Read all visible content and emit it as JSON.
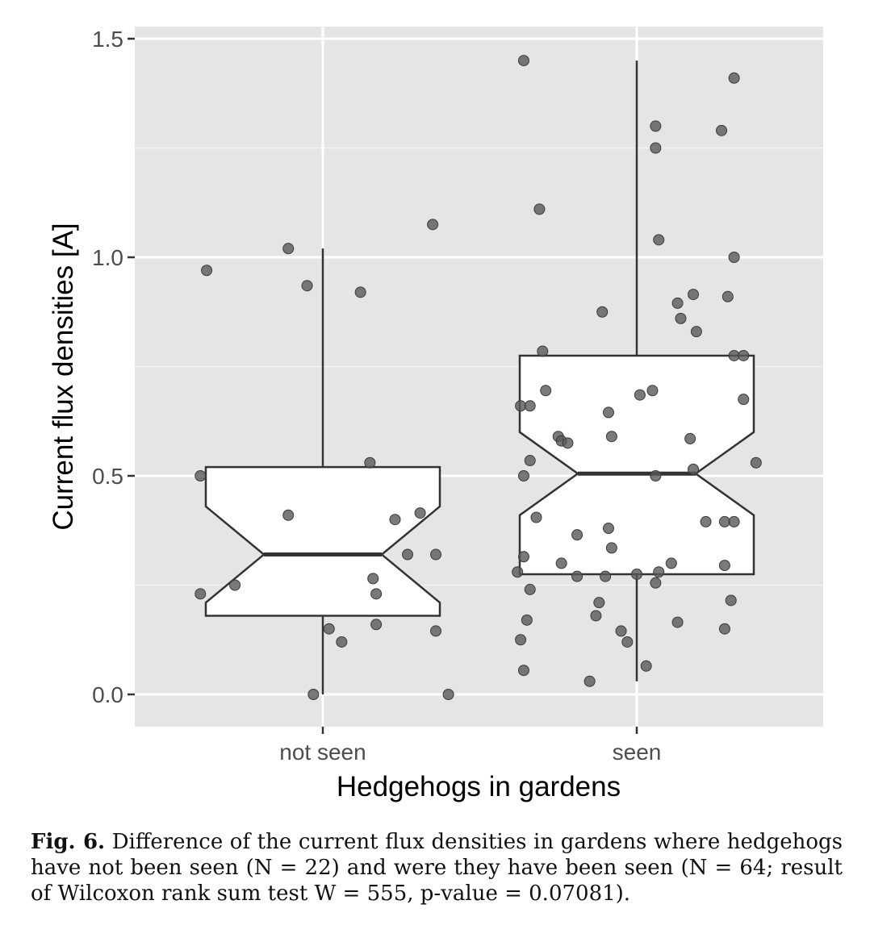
{
  "chart_data": {
    "type": "boxplot",
    "variant": "notched, with jittered points",
    "xlabel": "Hedgehogs in gardens",
    "ylabel": "Current flux densities [A]",
    "categories": [
      "not seen",
      "seen"
    ],
    "ylim": [
      -0.07,
      1.53
    ],
    "yticks": [
      {
        "value": 0.0,
        "label": "0.0"
      },
      {
        "value": 0.5,
        "label": "0.5"
      },
      {
        "value": 1.0,
        "label": "1.0"
      },
      {
        "value": 1.5,
        "label": "1.5"
      }
    ],
    "grid": true,
    "panel_background": "#e5e5e5",
    "point_color": "#595959",
    "boxes": [
      {
        "category": "not seen",
        "whisker_low": 0.0,
        "q1": 0.18,
        "median": 0.32,
        "q3": 0.52,
        "whisker_high": 1.02,
        "notch_low": 0.21,
        "notch_high": 0.43
      },
      {
        "category": "seen",
        "whisker_low": 0.03,
        "q1": 0.275,
        "median": 0.505,
        "q3": 0.775,
        "whisker_high": 1.45,
        "notch_low": 0.41,
        "notch_high": 0.6
      }
    ],
    "points": [
      {
        "category": "not seen",
        "values": [
          0.97,
          1.02,
          0.935,
          0.92,
          1.075,
          0.5,
          0.41,
          0.53,
          0.4,
          0.415,
          0.32,
          0.32,
          0.265,
          0.25,
          0.23,
          0.23,
          0.16,
          0.15,
          0.12,
          0.145,
          0.0,
          0.0
        ],
        "jitter": [
          -0.37,
          -0.11,
          -0.05,
          0.12,
          0.35,
          -0.39,
          -0.11,
          0.15,
          0.23,
          0.31,
          0.27,
          0.36,
          0.16,
          -0.28,
          -0.39,
          0.17,
          0.17,
          0.02,
          0.06,
          0.36,
          -0.03,
          0.4
        ]
      },
      {
        "category": "seen",
        "values": [
          1.45,
          1.11,
          0.785,
          0.695,
          0.66,
          0.66,
          0.59,
          0.58,
          0.575,
          0.535,
          0.5,
          0.405,
          0.315,
          0.28,
          0.3,
          0.24,
          0.17,
          0.125,
          0.055,
          0.03,
          0.365,
          0.27,
          0.875,
          0.645,
          0.59,
          0.38,
          0.335,
          0.27,
          0.21,
          0.18,
          0.145,
          0.12,
          1.3,
          1.25,
          1.04,
          0.685,
          0.695,
          0.5,
          0.28,
          0.275,
          0.255,
          0.065,
          0.895,
          0.86,
          0.915,
          0.83,
          0.585,
          0.515,
          0.395,
          0.3,
          0.165,
          1.41,
          1.29,
          1.0,
          0.91,
          0.775,
          0.775,
          0.675,
          0.53,
          0.395,
          0.395,
          0.295,
          0.215,
          0.15
        ],
        "jitter": [
          -0.36,
          -0.31,
          -0.3,
          -0.29,
          -0.37,
          -0.34,
          -0.25,
          -0.24,
          -0.22,
          -0.34,
          -0.36,
          -0.32,
          -0.36,
          -0.38,
          -0.24,
          -0.34,
          -0.35,
          -0.37,
          -0.36,
          -0.15,
          -0.19,
          -0.19,
          -0.11,
          -0.09,
          -0.08,
          -0.09,
          -0.08,
          -0.1,
          -0.12,
          -0.13,
          -0.05,
          -0.03,
          0.06,
          0.06,
          0.07,
          0.01,
          0.05,
          0.06,
          0.07,
          0.0,
          0.06,
          0.03,
          0.13,
          0.14,
          0.18,
          0.19,
          0.17,
          0.18,
          0.22,
          0.11,
          0.13,
          0.31,
          0.27,
          0.31,
          0.29,
          0.31,
          0.34,
          0.34,
          0.38,
          0.28,
          0.31,
          0.28,
          0.3,
          0.28
        ]
      }
    ]
  },
  "caption": {
    "label": "Fig. 6.",
    "text": " Difference of the current flux densities in gardens where hedgehogs have not been seen (N = 22) and were they have been seen (N = 64; result of Wilcoxon rank sum test W = 555, p-value = 0.07081)."
  }
}
